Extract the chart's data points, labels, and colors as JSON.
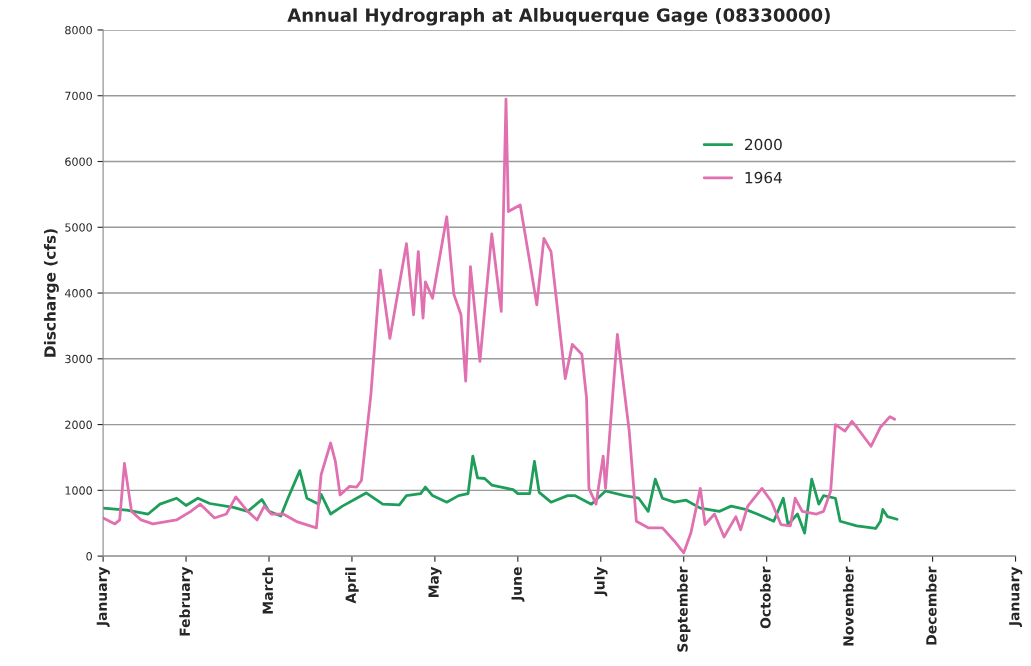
{
  "chart_data": {
    "type": "line",
    "title": "Annual Hydrograph at Albuquerque Gage (08330000)",
    "ylabel": "Discharge (cfs)",
    "xlim": [
      "2000-01-01",
      "2001-01-20"
    ],
    "ylim": [
      0,
      8000
    ],
    "xticks": [
      {
        "value": "2000-01-01",
        "label": "January"
      },
      {
        "value": "2000-02-05",
        "label": "February"
      },
      {
        "value": "2000-03-11",
        "label": "March"
      },
      {
        "value": "2000-04-15",
        "label": "April"
      },
      {
        "value": "2000-05-20",
        "label": "May"
      },
      {
        "value": "2000-06-24",
        "label": "June"
      },
      {
        "value": "2000-07-29",
        "label": "July"
      },
      {
        "value": "2000-09-02",
        "label": "September"
      },
      {
        "value": "2000-10-07",
        "label": "October"
      },
      {
        "value": "2000-11-11",
        "label": "November"
      },
      {
        "value": "2000-12-16",
        "label": "December"
      },
      {
        "value": "2001-01-20",
        "label": "January"
      }
    ],
    "yticks": [
      0,
      1000,
      2000,
      3000,
      4000,
      5000,
      6000,
      7000,
      8000
    ],
    "grid": "y",
    "legend": "top right",
    "marker": "none",
    "line_style": "solid",
    "series": [
      {
        "name": "2000",
        "color": "#1e9e5a",
        "x": [
          "2000-01-01",
          "2000-01-11",
          "2000-01-20",
          "2000-01-25",
          "2000-02-01",
          "2000-02-05",
          "2000-02-10",
          "2000-02-15",
          "2000-02-25",
          "2000-03-02",
          "2000-03-08",
          "2000-03-11",
          "2000-03-16",
          "2000-03-19",
          "2000-03-24",
          "2000-03-27",
          "2000-04-01",
          "2000-04-02",
          "2000-04-06",
          "2000-04-11",
          "2000-04-17",
          "2000-04-21",
          "2000-04-28",
          "2000-05-05",
          "2000-05-08",
          "2000-05-14",
          "2000-05-16",
          "2000-05-19",
          "2000-05-25",
          "2000-05-30",
          "2000-06-03",
          "2000-06-05",
          "2000-06-07",
          "2000-06-10",
          "2000-06-13",
          "2000-06-17",
          "2000-06-22",
          "2000-06-24",
          "2000-06-29",
          "2000-07-01",
          "2000-07-03",
          "2000-07-08",
          "2000-07-15",
          "2000-07-18",
          "2000-07-25",
          "2000-07-31",
          "2000-08-08",
          "2000-08-14",
          "2000-08-18",
          "2000-08-21",
          "2000-08-24",
          "2000-08-29",
          "2000-09-03",
          "2000-09-09",
          "2000-09-17",
          "2000-09-22",
          "2000-09-28",
          "2000-10-03",
          "2000-10-10",
          "2000-10-14",
          "2000-10-16",
          "2000-10-20",
          "2000-10-23",
          "2000-10-26",
          "2000-10-29",
          "2000-10-31",
          "2000-11-05",
          "2000-11-07",
          "2000-11-14",
          "2000-11-22",
          "2000-11-24",
          "2000-11-25",
          "2000-11-27",
          "2000-12-01"
        ],
        "values": [
          730,
          700,
          640,
          790,
          880,
          770,
          880,
          800,
          740,
          680,
          860,
          680,
          610,
          880,
          1300,
          880,
          790,
          940,
          640,
          760,
          880,
          960,
          790,
          780,
          920,
          950,
          1050,
          920,
          820,
          920,
          950,
          1520,
          1190,
          1180,
          1080,
          1050,
          1010,
          950,
          950,
          1440,
          970,
          820,
          920,
          920,
          790,
          990,
          920,
          880,
          680,
          1170,
          880,
          820,
          850,
          730,
          680,
          760,
          710,
          640,
          530,
          880,
          480,
          640,
          350,
          1170,
          790,
          920,
          880,
          530,
          460,
          420,
          530,
          710,
          600,
          560
        ]
      },
      {
        "name": "1964",
        "color": "#e070b0",
        "x": [
          "2000-01-01",
          "2000-01-06",
          "2000-01-08",
          "2000-01-10",
          "2000-01-13",
          "2000-01-17",
          "2000-01-22",
          "2000-02-01",
          "2000-02-07",
          "2000-02-11",
          "2000-02-17",
          "2000-02-22",
          "2000-02-26",
          "2000-03-02",
          "2000-03-06",
          "2000-03-09",
          "2000-03-12",
          "2000-03-17",
          "2000-03-23",
          "2000-03-31",
          "2000-04-02",
          "2000-04-06",
          "2000-04-08",
          "2000-04-10",
          "2000-04-14",
          "2000-04-17",
          "2000-04-19",
          "2000-04-23",
          "2000-04-27",
          "2000-05-01",
          "2000-05-08",
          "2000-05-11",
          "2000-05-13",
          "2000-05-15",
          "2000-05-16",
          "2000-05-19",
          "2000-05-25",
          "2000-05-28",
          "2000-05-31",
          "2000-06-02",
          "2000-06-04",
          "2000-06-08",
          "2000-06-13",
          "2000-06-17",
          "2000-06-19",
          "2000-06-20",
          "2000-06-25",
          "2000-06-29",
          "2000-07-02",
          "2000-07-05",
          "2000-07-08",
          "2000-07-11",
          "2000-07-14",
          "2000-07-17",
          "2000-07-21",
          "2000-07-23",
          "2000-07-24",
          "2000-07-27",
          "2000-07-30",
          "2000-07-31",
          "2000-08-05",
          "2000-08-10",
          "2000-08-13",
          "2000-08-18",
          "2000-08-24",
          "2000-08-29",
          "2000-09-02",
          "2000-09-05",
          "2000-09-09",
          "2000-09-11",
          "2000-09-15",
          "2000-09-19",
          "2000-09-24",
          "2000-09-26",
          "2000-09-29",
          "2000-10-05",
          "2000-10-09",
          "2000-10-13",
          "2000-10-17",
          "2000-10-19",
          "2000-10-22",
          "2000-10-28",
          "2000-10-31",
          "2000-11-03",
          "2000-11-05",
          "2000-11-09",
          "2000-11-12",
          "2000-11-14",
          "2000-11-20",
          "2000-11-24",
          "2000-11-28",
          "2000-11-30"
        ],
        "values": [
          580,
          490,
          550,
          1410,
          680,
          550,
          490,
          550,
          680,
          790,
          580,
          640,
          900,
          680,
          550,
          760,
          640,
          640,
          520,
          430,
          1240,
          1720,
          1440,
          930,
          1060,
          1050,
          1150,
          2460,
          4350,
          3310,
          4750,
          3670,
          4630,
          3620,
          4170,
          3920,
          5160,
          3980,
          3670,
          2660,
          4400,
          2960,
          4900,
          3720,
          6950,
          5240,
          5340,
          4480,
          3820,
          4830,
          4630,
          3670,
          2700,
          3220,
          3070,
          2400,
          1030,
          790,
          1520,
          1030,
          3370,
          1900,
          530,
          430,
          430,
          230,
          50,
          350,
          1030,
          480,
          640,
          290,
          600,
          400,
          760,
          1030,
          830,
          480,
          460,
          880,
          680,
          640,
          680,
          990,
          2000,
          1900,
          2050,
          1960,
          1670,
          1960,
          2120,
          2080
        ]
      }
    ]
  }
}
